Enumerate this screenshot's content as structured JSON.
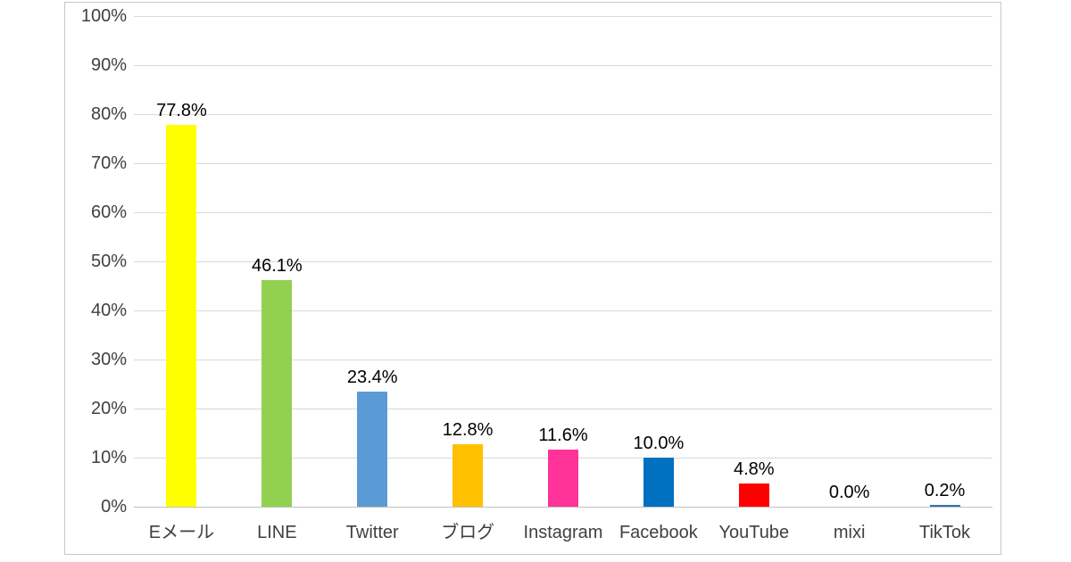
{
  "chart_data": {
    "type": "bar",
    "title": "",
    "xlabel": "",
    "ylabel": "",
    "categories": [
      "Eメール",
      "LINE",
      "Twitter",
      "ブログ",
      "Instagram",
      "Facebook",
      "YouTube",
      "mixi",
      "TikTok"
    ],
    "values": [
      77.8,
      46.1,
      23.4,
      12.8,
      11.6,
      10.0,
      4.8,
      0.0,
      0.2
    ],
    "data_labels": [
      "77.8%",
      "46.1%",
      "23.4%",
      "12.8%",
      "11.6%",
      "10.0%",
      "4.8%",
      "0.0%",
      "0.2%"
    ],
    "bar_colors": [
      "#FFFF00",
      "#92D050",
      "#5B9BD5",
      "#FFC000",
      "#FF3399",
      "#0070C0",
      "#FF0000",
      "#BFBFBF",
      "#2E75B6"
    ],
    "ylim": [
      0,
      100
    ],
    "y_tick_step": 10,
    "y_tick_labels": [
      "0%",
      "10%",
      "20%",
      "30%",
      "40%",
      "50%",
      "60%",
      "70%",
      "80%",
      "90%",
      "100%"
    ],
    "grid": true,
    "legend_position": "none"
  },
  "colors": {
    "background": "#FFFFFF",
    "frame_border": "#C9C9C9",
    "gridline": "#D9D9D9",
    "axis_line": "#BFBFBF",
    "tick_label": "#404040",
    "data_label": "#000000"
  }
}
